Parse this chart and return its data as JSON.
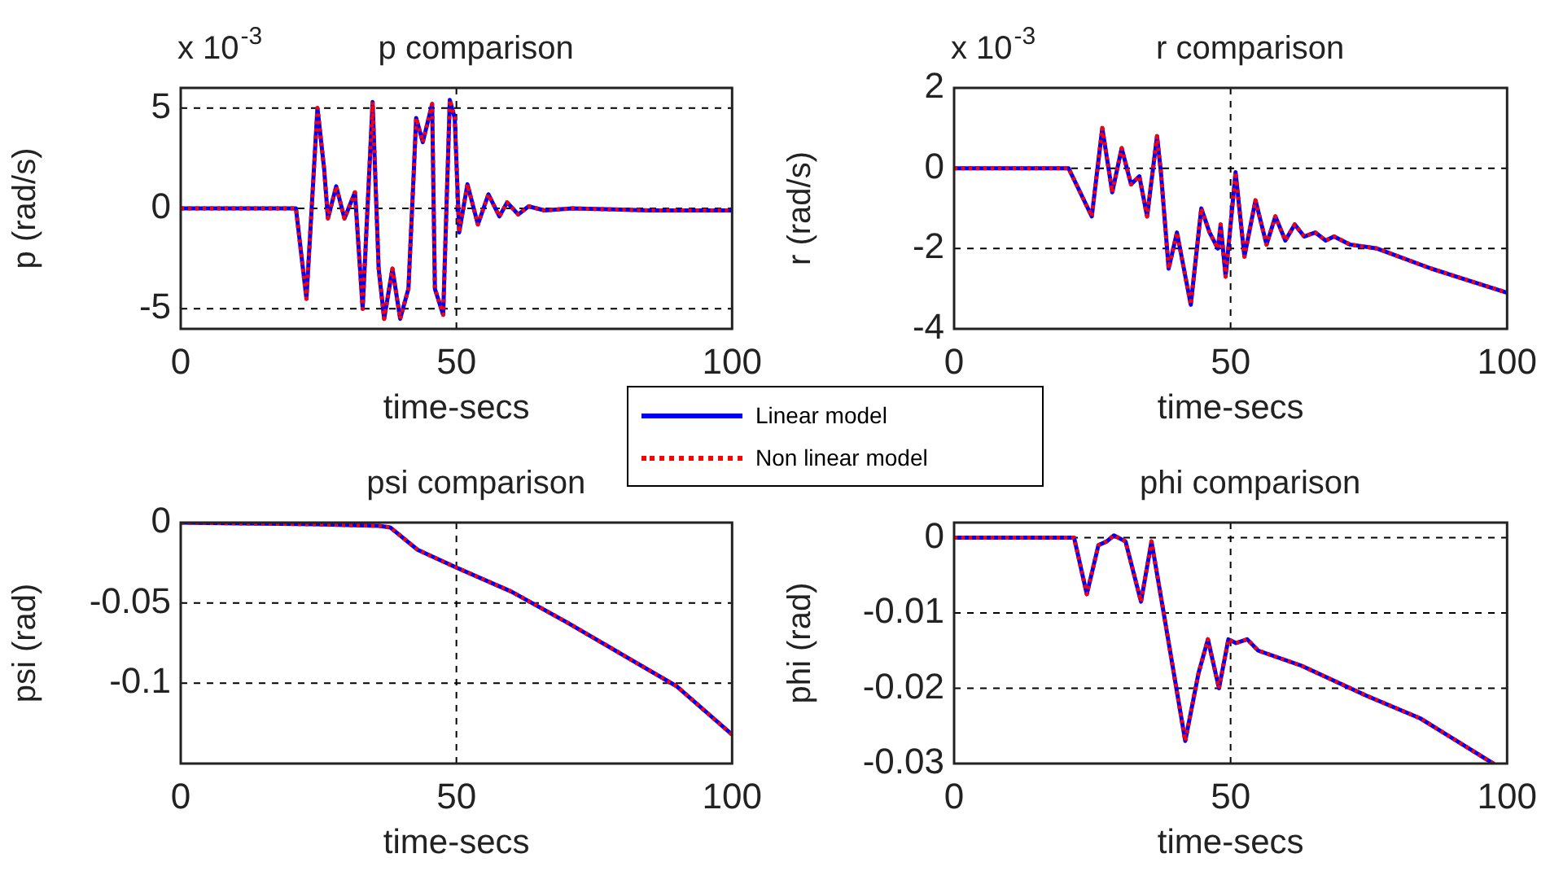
{
  "chart_data": [
    {
      "type": "line",
      "title": "p comparison",
      "xlabel": "time-secs",
      "ylabel": "p (rad/s)",
      "annotations": [
        "x 10$^{-3}$"
      ],
      "legend": "bottom right",
      "grid": true,
      "marker": "none",
      "xlim": [
        0,
        100
      ],
      "xticks": [
        0,
        50,
        100
      ],
      "ylim": [
        -6,
        6
      ],
      "yticks": [
        -5,
        0,
        5
      ],
      "x": [
        0,
        20.9,
        22.8,
        24.8,
        26,
        26.7,
        28.2,
        29.7,
        31.6,
        33,
        34.8,
        35.9,
        36.9,
        38.4,
        39.8,
        41.3,
        42.3,
        42.7,
        43.9,
        45.6,
        46.1,
        47.6,
        48.8,
        49.7,
        50.5,
        52,
        53.9,
        55.8,
        57.8,
        59.2,
        61.2,
        63.1,
        66,
        71,
        85,
        100
      ],
      "series": [
        {
          "name": "Linear model",
          "color": "#0000ff",
          "line_style": "solid",
          "values": [
            0,
            0,
            -4.5,
            5,
            2,
            -0.5,
            1.1,
            -0.5,
            0.8,
            -5,
            5.3,
            -3,
            -5.5,
            -3,
            -5.5,
            -4,
            2,
            4.5,
            3.3,
            5.2,
            -4,
            -5.3,
            5.4,
            4.5,
            -1.2,
            1.2,
            -0.8,
            0.7,
            -0.4,
            0.3,
            -0.3,
            0.1,
            -0.1,
            0,
            -0.1,
            -0.1
          ]
        },
        {
          "name": "Non linear model",
          "color": "#ff0000",
          "line_style": "dotted",
          "values": [
            0,
            0,
            -4.5,
            5,
            2,
            -0.5,
            1.1,
            -0.5,
            0.8,
            -5,
            5.3,
            -3,
            -5.5,
            -3,
            -5.5,
            -4,
            2,
            4.5,
            3.3,
            5.2,
            -4,
            -5.3,
            5.4,
            4.5,
            -1.2,
            1.2,
            -0.8,
            0.7,
            -0.4,
            0.3,
            -0.3,
            0.1,
            -0.1,
            0,
            -0.1,
            -0.1
          ]
        }
      ]
    },
    {
      "type": "line",
      "title": "r comparison",
      "xlabel": "time-secs",
      "ylabel": "r (rad/s)",
      "annotations": [
        "x 10$^{-3}$"
      ],
      "grid": true,
      "marker": "none",
      "xlim": [
        0,
        100
      ],
      "xticks": [
        0,
        50,
        100
      ],
      "ylim": [
        -4,
        2
      ],
      "yticks": [
        -4,
        -2,
        0,
        2
      ],
      "x": [
        0,
        20.7,
        24.9,
        26.8,
        28.6,
        30.3,
        32,
        33.5,
        34.9,
        36.7,
        37.4,
        38.8,
        40.3,
        42.8,
        44.7,
        46.2,
        47.7,
        48.2,
        49.1,
        50.9,
        52.5,
        54.5,
        56.5,
        58.1,
        59.9,
        61.6,
        63.3,
        65.3,
        67.2,
        68.7,
        71.6,
        76.5,
        86.3,
        100
      ],
      "series": [
        {
          "color": "#0000ff",
          "line_style": "solid",
          "values": [
            0,
            0,
            -1.2,
            1,
            -0.6,
            0.5,
            -0.4,
            -0.2,
            -1.2,
            0.8,
            -0.1,
            -2.5,
            -1.6,
            -3.4,
            -1,
            -1.6,
            -2,
            -1.4,
            -2.7,
            -0.1,
            -2.2,
            -0.8,
            -1.9,
            -1.2,
            -1.8,
            -1.4,
            -1.7,
            -1.6,
            -1.8,
            -1.7,
            -1.9,
            -2,
            -2.5,
            -3.1
          ]
        },
        {
          "color": "#ff0000",
          "line_style": "dotted",
          "values": [
            0,
            0,
            -1.2,
            1,
            -0.6,
            0.5,
            -0.4,
            -0.2,
            -1.2,
            0.8,
            -0.1,
            -2.5,
            -1.6,
            -3.4,
            -1,
            -1.6,
            -2,
            -1.4,
            -2.7,
            -0.1,
            -2.2,
            -0.8,
            -1.9,
            -1.2,
            -1.8,
            -1.4,
            -1.7,
            -1.6,
            -1.8,
            -1.7,
            -1.9,
            -2,
            -2.5,
            -3.1
          ]
        }
      ]
    },
    {
      "type": "line",
      "title": "psi comparison",
      "xlabel": "time-secs",
      "ylabel": "psi (rad)",
      "grid": true,
      "marker": "none",
      "xlim": [
        0,
        100
      ],
      "xticks": [
        0,
        50,
        100
      ],
      "ylim": [
        -0.15,
        0
      ],
      "yticks": [
        -0.1,
        -0.05,
        0
      ],
      "x": [
        0,
        24.3,
        36,
        38,
        43,
        50,
        60,
        70,
        80,
        90,
        100
      ],
      "series": [
        {
          "color": "#0000ff",
          "line_style": "solid",
          "values": [
            0,
            -0.001,
            -0.002,
            -0.003,
            -0.017,
            -0.028,
            -0.043,
            -0.062,
            -0.082,
            -0.102,
            -0.132
          ]
        },
        {
          "color": "#ff0000",
          "line_style": "dotted",
          "values": [
            0,
            -0.001,
            -0.002,
            -0.003,
            -0.017,
            -0.028,
            -0.043,
            -0.062,
            -0.082,
            -0.102,
            -0.132
          ]
        }
      ]
    },
    {
      "type": "line",
      "title": "phi comparison",
      "xlabel": "time-secs",
      "ylabel": "phi (rad)",
      "grid": true,
      "marker": "none",
      "xlim": [
        0,
        100
      ],
      "xticks": [
        0,
        50,
        100
      ],
      "ylim": [
        -0.03,
        0.002
      ],
      "yticks": [
        -0.03,
        -0.02,
        -0.01,
        0
      ],
      "x": [
        0,
        21.7,
        24,
        26.1,
        27.6,
        28.9,
        31,
        33.8,
        35.7,
        37.9,
        41.8,
        44.2,
        45.9,
        47.9,
        49.6,
        51,
        53,
        55,
        58.9,
        62.8,
        68.7,
        74.6,
        84.3,
        97.5
      ],
      "series": [
        {
          "color": "#0000ff",
          "line_style": "solid",
          "values": [
            0,
            0,
            -0.0075,
            -0.001,
            -0.0005,
            0.0003,
            -0.0005,
            -0.0085,
            -0.0005,
            -0.01,
            -0.027,
            -0.018,
            -0.0135,
            -0.02,
            -0.0135,
            -0.014,
            -0.0135,
            -0.015,
            -0.016,
            -0.017,
            -0.019,
            -0.021,
            -0.024,
            -0.03
          ]
        },
        {
          "color": "#ff0000",
          "line_style": "dotted",
          "values": [
            0,
            0,
            -0.0075,
            -0.001,
            -0.0005,
            0.0003,
            -0.0005,
            -0.0085,
            -0.0005,
            -0.01,
            -0.027,
            -0.018,
            -0.0135,
            -0.02,
            -0.0135,
            -0.014,
            -0.0135,
            -0.015,
            -0.016,
            -0.017,
            -0.019,
            -0.021,
            -0.024,
            -0.03
          ]
        }
      ]
    }
  ]
}
